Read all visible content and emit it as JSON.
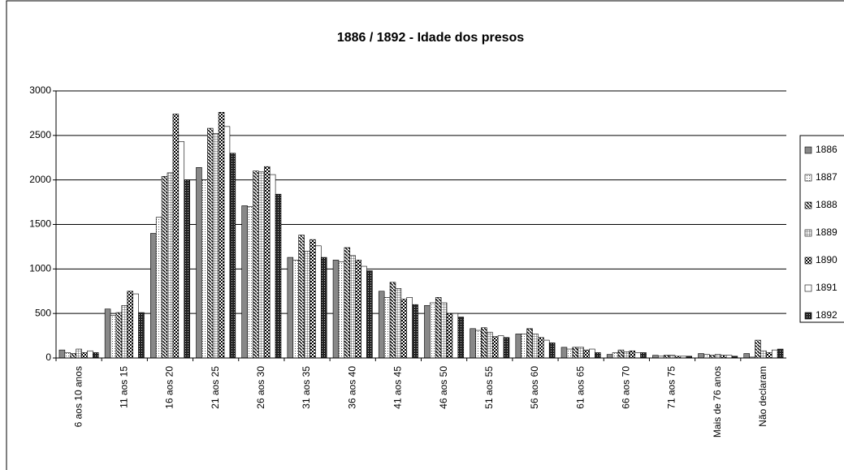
{
  "chart_data": {
    "type": "bar",
    "title": "1886 / 1892 - Idade dos presos",
    "categories": [
      "6 aos 10 anos",
      "11 aos 15",
      "16 aos 20",
      "21 aos 25",
      "26 aos 30",
      "31 aos 35",
      "36 aos 40",
      "41 aos 45",
      "46 aos 50",
      "51 aos 55",
      "56 aos 60",
      "61 aos 65",
      "66 aos 70",
      "71 aos 75",
      "Mais de 76 anos",
      "Não declaram"
    ],
    "series": [
      {
        "name": "1886",
        "color": "#888888",
        "pattern": "solid",
        "values": [
          90,
          550,
          1400,
          2140,
          1710,
          1130,
          1100,
          750,
          590,
          330,
          270,
          120,
          40,
          30,
          50,
          50
        ]
      },
      {
        "name": "1887",
        "color": "#dddddd",
        "pattern": "dots",
        "values": [
          60,
          480,
          1580,
          2000,
          1700,
          1100,
          1080,
          680,
          620,
          310,
          270,
          100,
          60,
          20,
          40,
          10
        ]
      },
      {
        "name": "1888",
        "color": "#ffffff",
        "pattern": "diagonal",
        "values": [
          50,
          510,
          2040,
          2580,
          2100,
          1380,
          1240,
          850,
          680,
          340,
          330,
          120,
          90,
          30,
          30,
          200
        ]
      },
      {
        "name": "1889",
        "color": "#ffffff",
        "pattern": "grid",
        "values": [
          100,
          590,
          2080,
          2520,
          2090,
          1200,
          1150,
          780,
          620,
          290,
          270,
          120,
          70,
          30,
          40,
          80
        ]
      },
      {
        "name": "1890",
        "color": "#ffffff",
        "pattern": "checker",
        "values": [
          60,
          750,
          2740,
          2760,
          2150,
          1330,
          1100,
          660,
          500,
          240,
          230,
          90,
          80,
          20,
          30,
          60
        ]
      },
      {
        "name": "1891",
        "color": "#ffffff",
        "pattern": "solid",
        "values": [
          80,
          720,
          2430,
          2600,
          2060,
          1260,
          1030,
          680,
          500,
          250,
          200,
          100,
          60,
          20,
          30,
          90
        ]
      },
      {
        "name": "1892",
        "color": "#333333",
        "pattern": "checker-dark",
        "values": [
          60,
          510,
          2000,
          2300,
          1840,
          1130,
          980,
          600,
          460,
          230,
          170,
          60,
          60,
          20,
          20,
          100
        ]
      }
    ],
    "ylim": [
      0,
      3000
    ],
    "yticks": [
      0,
      500,
      1000,
      1500,
      2000,
      2500,
      3000
    ],
    "grid": true,
    "legend": "right"
  }
}
